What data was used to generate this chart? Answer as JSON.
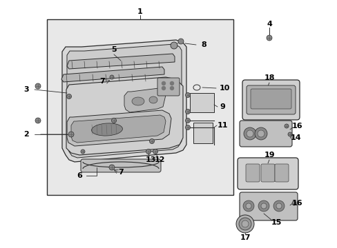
{
  "bg_color": "#ffffff",
  "box_bg": "#e8e8e8",
  "lc": "#2a2a2a",
  "tc": "#000000",
  "fontsize_label": 7.5,
  "fontsize_num": 8
}
